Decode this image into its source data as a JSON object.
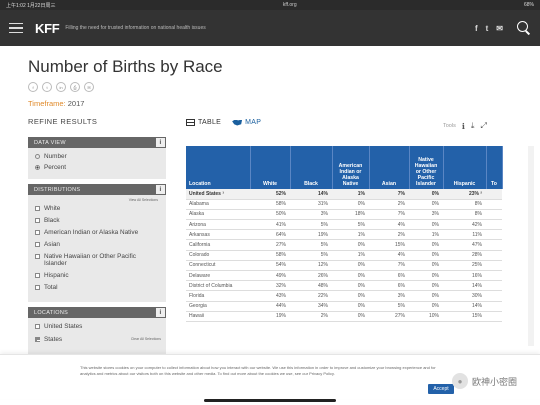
{
  "status": {
    "time": "上午1:02",
    "date": "1月22日周三",
    "url": "kff.org",
    "battery": "68%"
  },
  "header": {
    "logo": "KFF",
    "tagline": "Filling the need for trusted information on national health issues",
    "social": [
      "f",
      "t",
      "✉"
    ]
  },
  "page": {
    "title": "Number of Births by Race",
    "timeframe_label": "Timeframe:",
    "timeframe_value": "2017",
    "refine": "REFINE RESULTS"
  },
  "share_icons": [
    "f",
    "t",
    "in",
    "⎙",
    "✉"
  ],
  "data_view": {
    "header": "DATA VIEW",
    "options": [
      {
        "label": "Number",
        "selected": false
      },
      {
        "label": "Percent",
        "selected": true
      }
    ]
  },
  "distributions": {
    "header": "DISTRIBUTIONS",
    "show_all": "View All Selections",
    "items": [
      "White",
      "Black",
      "American Indian or Alaska Native",
      "Asian",
      "Native Hawaiian or Other Pacific Islander",
      "Hispanic",
      "Total"
    ]
  },
  "locations": {
    "header": "LOCATIONS",
    "show_all": "Clear All Selections",
    "items": [
      "United States",
      "States"
    ]
  },
  "tabs": {
    "table": "TABLE",
    "map": "MAP",
    "tools": "Tools"
  },
  "table": {
    "columns": [
      "Location",
      "White",
      "Black",
      "American Indian or Alaska Native",
      "Asian",
      "Native Hawaiian or Other Pacific Islander",
      "Hispanic",
      "To"
    ],
    "rows": [
      {
        "loc": "United States ¹",
        "v": [
          "52%",
          "14%",
          "1%",
          "7%",
          "0%",
          "23% ²",
          ""
        ]
      },
      {
        "loc": "Alabama",
        "v": [
          "58%",
          "31%",
          "0%",
          "2%",
          "0%",
          "8%",
          ""
        ]
      },
      {
        "loc": "Alaska",
        "v": [
          "50%",
          "3%",
          "18%",
          "7%",
          "3%",
          "8%",
          ""
        ]
      },
      {
        "loc": "Arizona",
        "v": [
          "41%",
          "5%",
          "5%",
          "4%",
          "0%",
          "42%",
          ""
        ]
      },
      {
        "loc": "Arkansas",
        "v": [
          "64%",
          "19%",
          "1%",
          "2%",
          "1%",
          "11%",
          ""
        ]
      },
      {
        "loc": "California",
        "v": [
          "27%",
          "5%",
          "0%",
          "15%",
          "0%",
          "47%",
          ""
        ]
      },
      {
        "loc": "Colorado",
        "v": [
          "58%",
          "5%",
          "1%",
          "4%",
          "0%",
          "28%",
          ""
        ]
      },
      {
        "loc": "Connecticut",
        "v": [
          "54%",
          "12%",
          "0%",
          "7%",
          "0%",
          "25%",
          ""
        ]
      },
      {
        "loc": "Delaware",
        "v": [
          "49%",
          "26%",
          "0%",
          "6%",
          "0%",
          "16%",
          ""
        ]
      },
      {
        "loc": "District of Columbia",
        "v": [
          "32%",
          "48%",
          "0%",
          "6%",
          "0%",
          "14%",
          ""
        ]
      },
      {
        "loc": "Florida",
        "v": [
          "43%",
          "22%",
          "0%",
          "3%",
          "0%",
          "30%",
          ""
        ]
      },
      {
        "loc": "Georgia",
        "v": [
          "44%",
          "34%",
          "0%",
          "5%",
          "0%",
          "14%",
          ""
        ]
      },
      {
        "loc": "Hawaii",
        "v": [
          "19%",
          "2%",
          "0%",
          "27%",
          "10%",
          "15%",
          ""
        ]
      }
    ]
  },
  "cookie": {
    "text": "This website stores cookies on your computer to collect information about how you interact with our website. We use this information in order to improve and customize your browsing experience and for analytics and metrics about our visitors both on this website and other media. To find out more about the cookies we use, see our Privacy Policy.",
    "accept": "Accept"
  },
  "watermark": "欧神小密圈"
}
